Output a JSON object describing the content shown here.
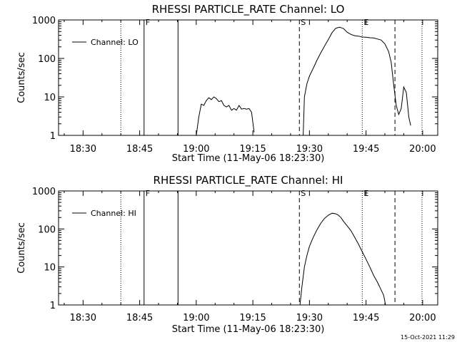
{
  "figure": {
    "timestamp": "15-Oct-2021 11:29"
  },
  "chart_data": [
    {
      "type": "line",
      "title": "RHESSI PARTICLE_RATE Channel: LO",
      "xlabel": "Start Time (11-May-06 18:23:30)",
      "ylabel": "Counts/sec",
      "yscale": "log",
      "xlim": [
        "18:23:30",
        "20:04:00"
      ],
      "ylim": [
        1,
        1000
      ],
      "x_ticks": [
        "18:30",
        "18:45",
        "19:00",
        "19:15",
        "19:30",
        "19:45",
        "20:00"
      ],
      "y_ticks": [
        "1",
        "10",
        "100",
        "1000"
      ],
      "legend": {
        "position": "top-left",
        "entries": [
          "Channel: LO"
        ]
      },
      "grid": false,
      "vertical_markers": [
        {
          "time": "18:40:00",
          "style": "dotted",
          "label": ""
        },
        {
          "time": "18:46:10",
          "style": "solid",
          "label": "F"
        },
        {
          "time": "18:55:10",
          "style": "solid",
          "label": ""
        },
        {
          "time": "19:27:20",
          "style": "dashed",
          "label": "S"
        },
        {
          "time": "19:44:00",
          "style": "dotted",
          "label": "E"
        },
        {
          "time": "19:52:40",
          "style": "dashed",
          "label": ""
        },
        {
          "time": "19:59:50",
          "style": "dotted",
          "label": ""
        }
      ],
      "series": [
        {
          "name": "Channel: LO",
          "segments": [
            {
              "x": [
                "19:00:00",
                "19:00:40",
                "19:01:20",
                "19:02:00",
                "19:02:40",
                "19:03:20",
                "19:04:00",
                "19:04:40",
                "19:05:20",
                "19:06:00",
                "19:06:40",
                "19:07:20",
                "19:08:00",
                "19:08:40",
                "19:09:20",
                "19:10:00",
                "19:10:40",
                "19:11:20",
                "19:12:00",
                "19:12:40",
                "19:13:20",
                "19:14:00",
                "19:14:40",
                "19:15:20"
              ],
              "y": [
                1,
                3,
                6.5,
                6,
                8,
                9.5,
                8.5,
                10,
                9,
                7.5,
                8,
                6,
                5.5,
                6,
                4.5,
                5,
                4.5,
                6,
                4.8,
                5,
                4.8,
                5,
                4,
                1.2
              ]
            },
            {
              "x": [
                "19:28:20",
                "19:28:40",
                "19:29:20",
                "19:30:00",
                "19:31:00",
                "19:32:00",
                "19:33:00",
                "19:34:00",
                "19:35:00",
                "19:36:00",
                "19:37:00",
                "19:38:00",
                "19:39:00",
                "19:40:00",
                "19:41:00",
                "19:42:00",
                "19:43:00",
                "19:44:00",
                "19:45:00",
                "19:46:00",
                "19:47:00",
                "19:48:00",
                "19:49:00",
                "19:50:00",
                "19:51:00",
                "19:51:40",
                "19:52:20",
                "19:53:00",
                "19:53:40",
                "19:54:20",
                "19:55:00",
                "19:55:40",
                "19:56:20",
                "19:56:50"
              ],
              "y": [
                1,
                10,
                22,
                35,
                55,
                90,
                140,
                210,
                310,
                470,
                610,
                650,
                600,
                480,
                420,
                390,
                380,
                360,
                355,
                345,
                340,
                320,
                300,
                240,
                150,
                80,
                20,
                6,
                3.5,
                5,
                18,
                13,
                3,
                1.8
              ]
            }
          ]
        }
      ]
    },
    {
      "type": "line",
      "title": "RHESSI PARTICLE_RATE Channel: HI",
      "xlabel": "Start Time (11-May-06 18:23:30)",
      "ylabel": "Counts/sec",
      "yscale": "log",
      "xlim": [
        "18:23:30",
        "20:04:00"
      ],
      "ylim": [
        1,
        1000
      ],
      "x_ticks": [
        "18:30",
        "18:45",
        "19:00",
        "19:15",
        "19:30",
        "19:45",
        "20:00"
      ],
      "y_ticks": [
        "1",
        "10",
        "100",
        "1000"
      ],
      "legend": {
        "position": "top-left",
        "entries": [
          "Channel: HI"
        ]
      },
      "grid": false,
      "vertical_markers": [
        {
          "time": "18:40:00",
          "style": "dotted",
          "label": ""
        },
        {
          "time": "18:46:10",
          "style": "solid",
          "label": "F"
        },
        {
          "time": "18:55:10",
          "style": "solid",
          "label": ""
        },
        {
          "time": "19:27:20",
          "style": "dashed",
          "label": "S"
        },
        {
          "time": "19:44:00",
          "style": "dotted",
          "label": "E"
        },
        {
          "time": "19:52:40",
          "style": "dashed",
          "label": ""
        },
        {
          "time": "19:59:50",
          "style": "dotted",
          "label": ""
        }
      ],
      "series": [
        {
          "name": "Channel: HI",
          "segments": [
            {
              "x": [
                "19:27:30",
                "19:28:00",
                "19:28:40",
                "19:29:20",
                "19:30:00",
                "19:31:00",
                "19:32:00",
                "19:33:00",
                "19:34:00",
                "19:35:00",
                "19:36:00",
                "19:37:00",
                "19:37:40",
                "19:38:20",
                "19:39:00",
                "19:40:00",
                "19:41:00",
                "19:42:00",
                "19:43:00",
                "19:44:00",
                "19:45:00",
                "19:46:00",
                "19:47:00",
                "19:48:00",
                "19:49:00",
                "19:49:40",
                "19:50:10"
              ],
              "y": [
                1,
                3,
                10,
                20,
                35,
                60,
                95,
                140,
                190,
                230,
                260,
                250,
                230,
                200,
                160,
                120,
                90,
                60,
                40,
                25,
                16,
                10,
                6,
                4,
                2.5,
                1.8,
                1
              ]
            }
          ]
        }
      ]
    }
  ]
}
